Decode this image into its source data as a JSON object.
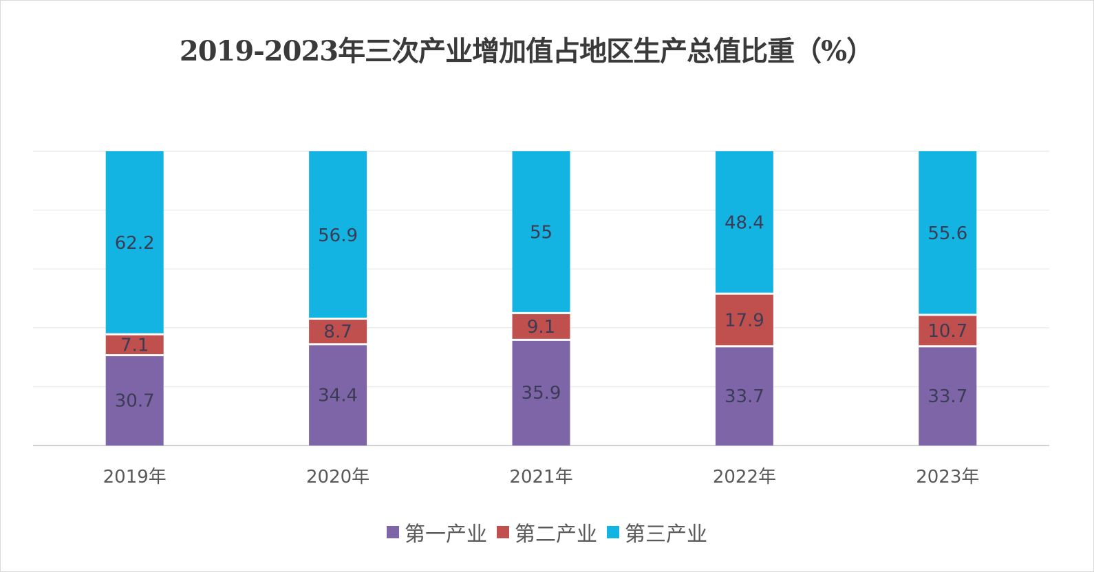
{
  "chart_data": {
    "type": "bar",
    "stacked": true,
    "title": "2019-2023年三次产业增加值占地区生产总值比重（%）",
    "categories": [
      "2019年",
      "2020年",
      "2021年",
      "2022年",
      "2023年"
    ],
    "series": [
      {
        "name": "第一产业",
        "color": "#7e65a8",
        "values": [
          30.7,
          34.4,
          35.9,
          33.7,
          33.7
        ]
      },
      {
        "name": "第二产业",
        "color": "#c0504d",
        "values": [
          7.1,
          8.7,
          9.1,
          17.9,
          10.7
        ]
      },
      {
        "name": "第三产业",
        "color": "#14b4e2",
        "values": [
          62.2,
          56.9,
          55,
          48.4,
          55.6
        ]
      }
    ],
    "ylim": [
      0,
      100
    ],
    "xlabel": "",
    "ylabel": "",
    "grid": true,
    "legend_position": "bottom"
  }
}
